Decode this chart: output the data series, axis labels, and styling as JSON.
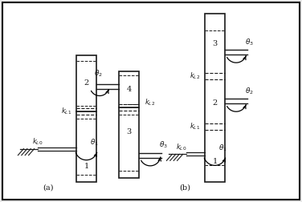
{
  "figsize": [
    3.76,
    2.52
  ],
  "dpi": 100,
  "bg_color": "#f5f5f5",
  "line_color": "#1a1a1a",
  "label_a": "(a)",
  "label_b": "(b)"
}
